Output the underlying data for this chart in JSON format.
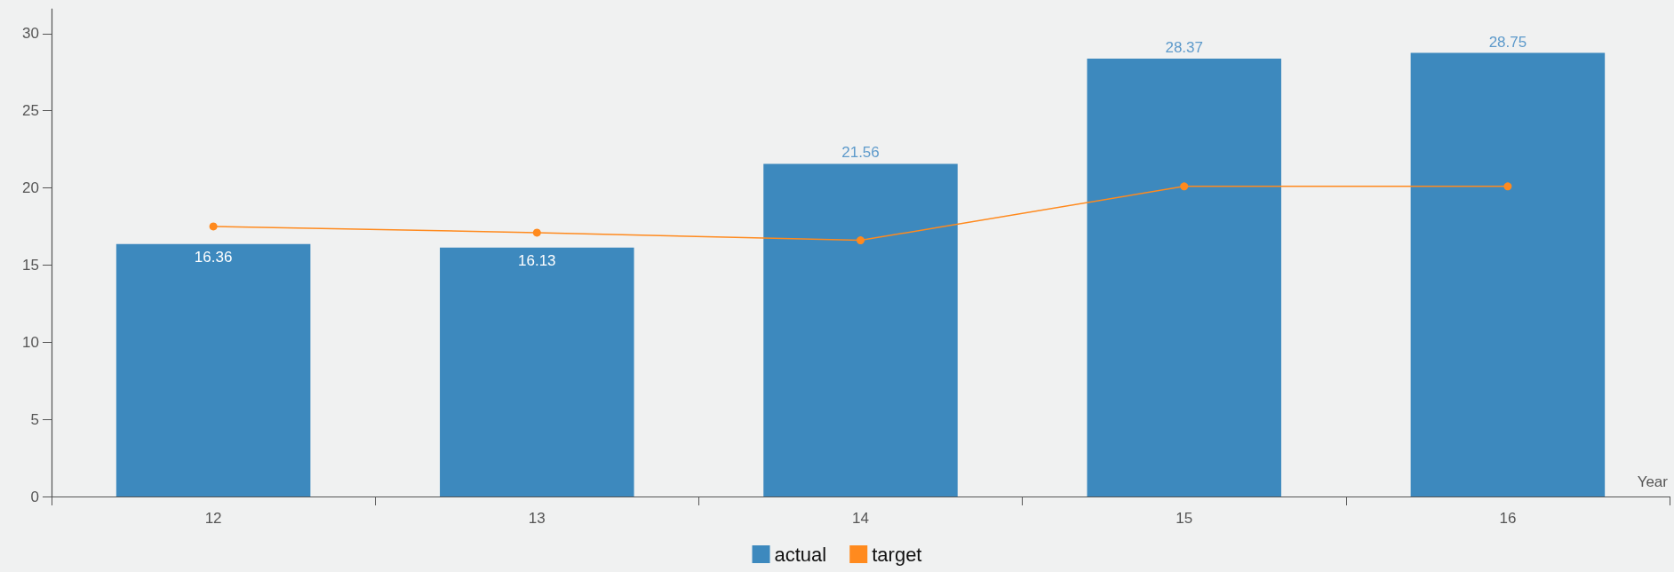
{
  "chart_data": {
    "type": "bar",
    "xlabel": "Year",
    "categories": [
      "12",
      "13",
      "14",
      "15",
      "16"
    ],
    "series": [
      {
        "name": "actual",
        "type": "bar",
        "color": "#3d89be",
        "values": [
          16.36,
          16.13,
          21.56,
          28.37,
          28.75
        ],
        "value_labels": [
          "16.36",
          "16.13",
          "21.56",
          "28.37",
          "28.75"
        ]
      },
      {
        "name": "target",
        "type": "line",
        "color": "#ff8a1e",
        "values": [
          17.5,
          17.1,
          16.6,
          20.1,
          20.1
        ],
        "marker": "circle",
        "line_style": "solid"
      }
    ],
    "ylim": [
      0,
      31.6
    ],
    "yticks": [
      0,
      5,
      10,
      15,
      20,
      25,
      30
    ],
    "grid": false,
    "legend": "bottom"
  }
}
